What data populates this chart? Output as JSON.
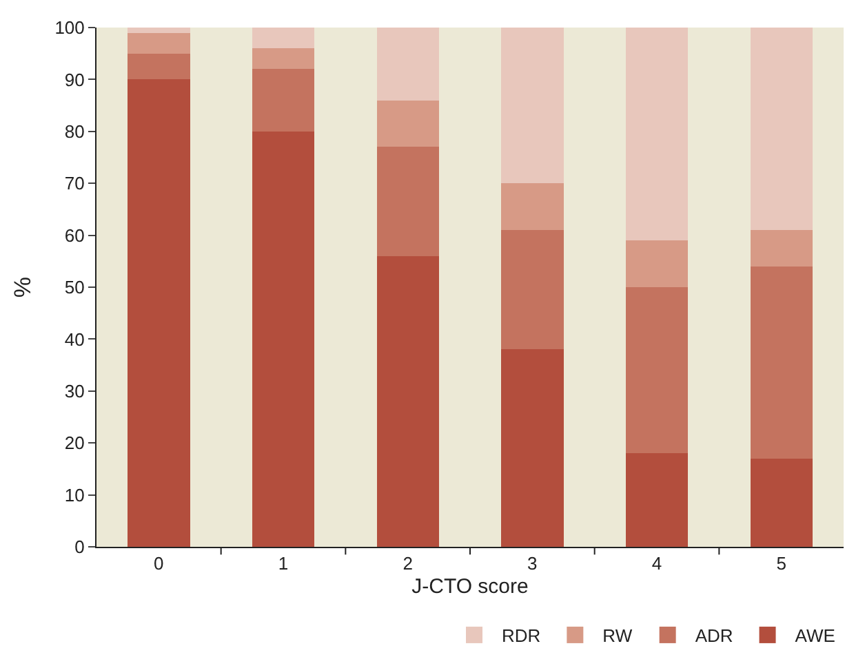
{
  "chart_data": {
    "type": "bar",
    "stacked": true,
    "xlabel": "J-CTO score",
    "ylabel": "%",
    "categories": [
      "0",
      "1",
      "2",
      "3",
      "4",
      "5"
    ],
    "series": [
      {
        "name": "AWE",
        "color": "#b34e3d",
        "values": [
          90,
          80,
          56,
          38,
          18,
          17
        ]
      },
      {
        "name": "ADR",
        "color": "#c4735f",
        "values": [
          5,
          12,
          21,
          23,
          32,
          37
        ]
      },
      {
        "name": "RW",
        "color": "#d79a86",
        "values": [
          4,
          4,
          9,
          9,
          9,
          7
        ]
      },
      {
        "name": "RDR",
        "color": "#e8c7bc",
        "values": [
          1,
          4,
          14,
          30,
          41,
          39
        ]
      }
    ],
    "ylim": [
      0,
      100
    ],
    "yticks": [
      0,
      10,
      20,
      30,
      40,
      50,
      60,
      70,
      80,
      90,
      100
    ],
    "grid": false,
    "legend": "bottom right"
  }
}
